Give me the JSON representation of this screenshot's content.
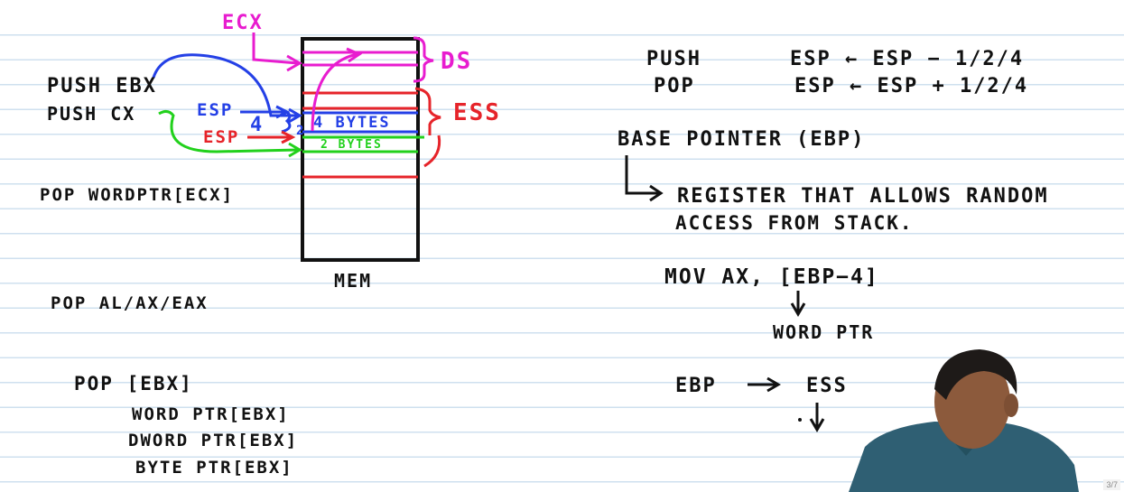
{
  "left": {
    "ecx_label": "ECX",
    "push_ebx": "PUSH EBX",
    "push_cx": "PUSH CX",
    "esp_blue": "ESP",
    "esp_red": "ESP",
    "four": "4",
    "two": "2",
    "four_bytes": "4 BYTES",
    "two_bytes": "2 BYTES",
    "ds_label": "DS",
    "ess_label": "ESS",
    "mem_label": "MEM",
    "pop_word_ptr_ecx": "POP WORDPTR[ECX]",
    "pop_al_ax_eax": "POP AL/AX/EAX",
    "pop_ebx": "POP [EBX]",
    "word_ptr_ebx": "WORD PTR[EBX]",
    "dword_ptr_ebx": "DWORD PTR[EBX]",
    "byte_ptr_ebx": "BYTE PTR[EBX]"
  },
  "right": {
    "push_word": "PUSH",
    "push_rule": "ESP ← ESP − 1/2/4",
    "pop_word": "POP",
    "pop_rule": "ESP ← ESP + 1/2/4",
    "base_pointer": "BASE POINTER (EBP)",
    "register_line1": "REGISTER THAT ALLOWS RANDOM",
    "register_line2": "ACCESS FROM STACK.",
    "mov_instruction": "MOV AX, [EBP−4]",
    "word_ptr": "WORD PTR",
    "ebp_to": "EBP",
    "ess": "ESS"
  },
  "page_indicator": "3/7",
  "colors": {
    "ink": "#111111",
    "magenta": "#e81ccf",
    "blue": "#2440e6",
    "red": "#e6242a",
    "green": "#22d11c",
    "rule_line": "#cfe0ef"
  }
}
